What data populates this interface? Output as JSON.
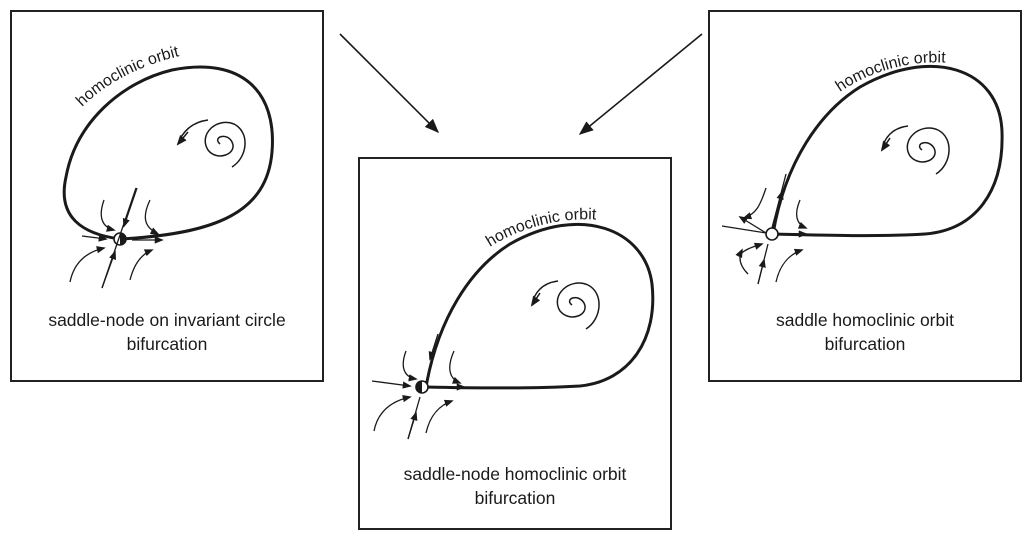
{
  "panels": {
    "left": {
      "orbit_label": "homoclinic orbit",
      "caption_line1": "saddle-node on invariant circle",
      "caption_line2": "bifurcation"
    },
    "center": {
      "orbit_label": "homoclinic orbit",
      "caption_line1": "saddle-node homoclinic orbit",
      "caption_line2": "bifurcation"
    },
    "right": {
      "orbit_label": "homoclinic orbit",
      "caption_line1": "saddle homoclinic orbit",
      "caption_line2": "bifurcation"
    }
  },
  "colors": {
    "line": "#1a1a1a",
    "border": "#222222",
    "background": "#ffffff"
  }
}
